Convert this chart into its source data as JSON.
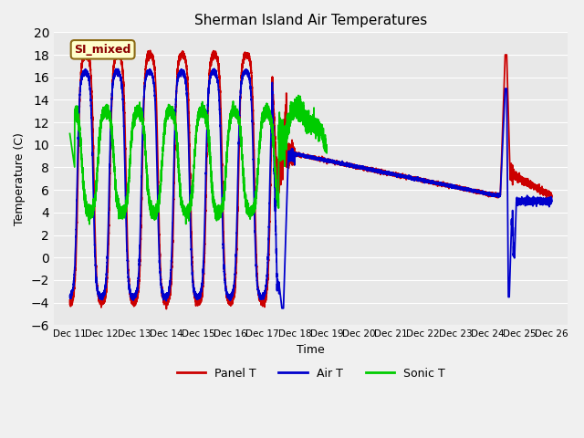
{
  "title": "Sherman Island Air Temperatures",
  "xlabel": "Time",
  "ylabel": "Temperature (C)",
  "ylim": [
    -6,
    20
  ],
  "yticks": [
    -6,
    -4,
    -2,
    0,
    2,
    4,
    6,
    8,
    10,
    12,
    14,
    16,
    18,
    20
  ],
  "xtick_labels": [
    "Dec 11",
    "Dec 12",
    "Dec 13",
    "Dec 14",
    "Dec 15",
    "Dec 16",
    "Dec 17",
    "Dec 18",
    "Dec 19",
    "Dec 20",
    "Dec 21",
    "Dec 22",
    "Dec 23",
    "Dec 24",
    "Dec 25",
    "Dec 26"
  ],
  "xtick_positions": [
    1,
    2,
    3,
    4,
    5,
    6,
    7,
    8,
    9,
    10,
    11,
    12,
    13,
    14,
    15,
    16
  ],
  "panel_color": "#cc0000",
  "air_color": "#0000cc",
  "sonic_color": "#00cc00",
  "plot_bg": "#e8e8e8",
  "fig_bg": "#f0f0f0",
  "grid_color": "#ffffff",
  "annotation_text": "SI_mixed",
  "annotation_fg": "#8b0000",
  "annotation_bg": "#ffffcc",
  "annotation_border": "#8b6914",
  "legend_entries": [
    "Panel T",
    "Air T",
    "Sonic T"
  ]
}
